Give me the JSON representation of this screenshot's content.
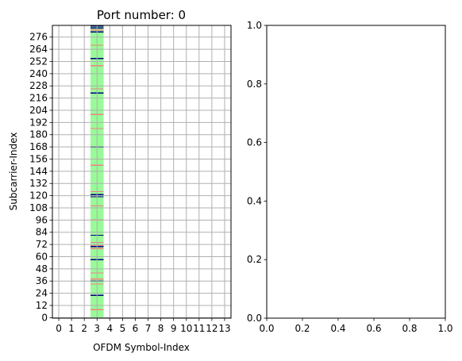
{
  "chart_data": [
    {
      "type": "heatmap",
      "title": "Port number: 0",
      "xlabel": "OFDM Symbol-Index",
      "ylabel": "Subcarrier-Index",
      "x_ticks": [
        "0",
        "1",
        "2",
        "3",
        "4",
        "5",
        "6",
        "7",
        "8",
        "9",
        "10",
        "11",
        "12",
        "13"
      ],
      "y_ticks": [
        "0",
        "12",
        "24",
        "36",
        "48",
        "60",
        "72",
        "84",
        "96",
        "108",
        "120",
        "132",
        "144",
        "156",
        "168",
        "180",
        "192",
        "204",
        "216",
        "228",
        "240",
        "252",
        "264",
        "276"
      ],
      "x_range": [
        -0.5,
        13.5
      ],
      "y_range": [
        -0.5,
        287.5
      ],
      "grid": true,
      "occupied_symbol": 3,
      "colors": {
        "background": "#ffffff",
        "grid": "#b0b0b0",
        "data": "#98fb98",
        "dmrs": "#f08080",
        "ptrs": "#000080",
        "empty": "#ffffff"
      },
      "highlight_subcarriers": {
        "dmrs": [
          8,
          33,
          38,
          44,
          60,
          68,
          71,
          74,
          96,
          110,
          124,
          150,
          168,
          186,
          200,
          225,
          248,
          268,
          283
        ],
        "ptrs": [
          22,
          36,
          57,
          70,
          81,
          119,
          121,
          168,
          204,
          221,
          252,
          255,
          281,
          285,
          287
        ]
      }
    },
    {
      "type": "scatter",
      "title": "",
      "xlabel": "",
      "ylabel": "",
      "xlim": [
        0,
        1
      ],
      "ylim": [
        0,
        1
      ],
      "x_ticks": [
        "0.0",
        "0.2",
        "0.4",
        "0.6",
        "0.8",
        "1.0"
      ],
      "y_ticks": [
        "0.0",
        "0.2",
        "0.4",
        "0.6",
        "0.8",
        "1.0"
      ],
      "series": []
    }
  ]
}
